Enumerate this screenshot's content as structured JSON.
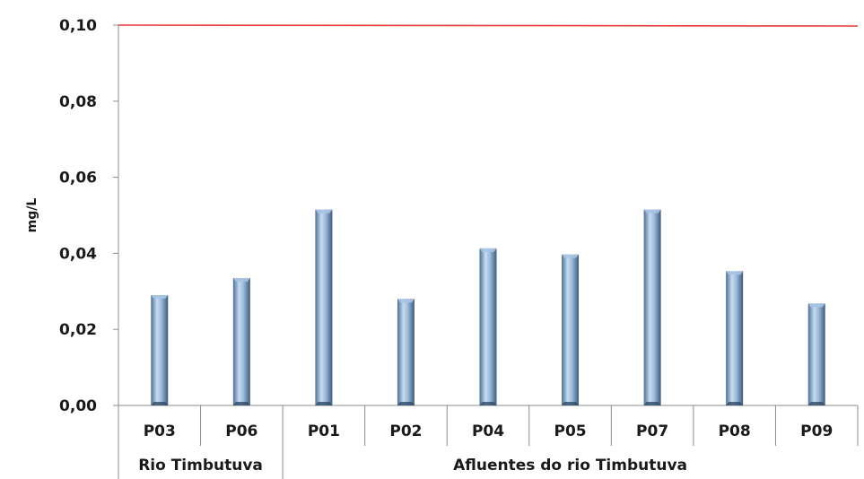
{
  "chart_data": {
    "type": "bar",
    "ylabel": "mg/L",
    "ylim": [
      0,
      0.1
    ],
    "yticks": [
      "0,00",
      "0,02",
      "0,04",
      "0,06",
      "0,08",
      "0,10"
    ],
    "categories": [
      "P03",
      "P06",
      "P01",
      "P02",
      "P04",
      "P05",
      "P07",
      "P08",
      "P09"
    ],
    "groups": [
      {
        "label": "Rio Timbutuva",
        "count": 2
      },
      {
        "label": "Afluentes do rio Timbutuva",
        "count": 7
      }
    ],
    "values": [
      0.029,
      0.0335,
      0.0515,
      0.028,
      0.0413,
      0.0397,
      0.0515,
      0.0353,
      0.0268
    ],
    "reference_line": {
      "value": 0.1,
      "color": "#e83a3a"
    },
    "bar_color": "#8fb0d6",
    "grid": false
  }
}
